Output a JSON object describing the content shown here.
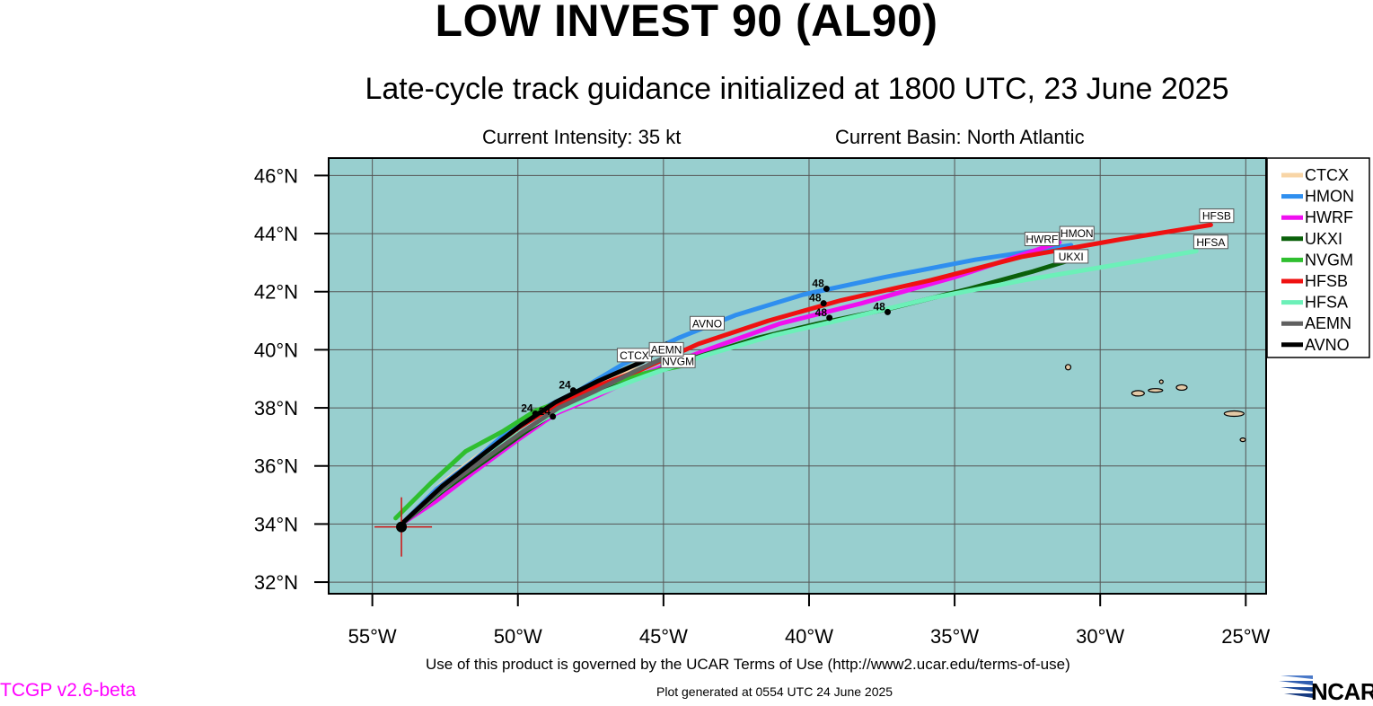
{
  "header": {
    "title": "LOW INVEST 90 (AL90)",
    "subtitle": "Late-cycle track guidance initialized at 1800 UTC, 23 June 2025",
    "intensity": "Current Intensity: 35 kt",
    "basin": "Current Basin: North Atlantic"
  },
  "footer": {
    "terms": "Use of this product is governed by the UCAR Terms of Use (http://www2.ucar.edu/terms-of-use)",
    "plot_generated": "Plot generated at 0554 UTC   24 June 2025",
    "version": "TCGP v2.6-beta",
    "logo": "NCAR"
  },
  "colors": {
    "ocean": "#98cfcf",
    "land": "#e3c9a6",
    "grid": "#555555",
    "storm_marker": "#d11111"
  },
  "chart_data": {
    "type": "map",
    "lon_range": [
      -56.5,
      -24.3
    ],
    "lat_range": [
      31.6,
      46.6
    ],
    "lon_ticks": [
      -55,
      -50,
      -45,
      -40,
      -35,
      -30,
      -25
    ],
    "lon_tick_labels": [
      "55°W",
      "50°W",
      "45°W",
      "40°W",
      "35°W",
      "30°W",
      "25°W"
    ],
    "lat_ticks": [
      32,
      34,
      36,
      38,
      40,
      42,
      44,
      46
    ],
    "lat_tick_labels": [
      "32°N",
      "34°N",
      "36°N",
      "38°N",
      "40°N",
      "42°N",
      "44°N",
      "46°N"
    ],
    "grid": true,
    "storm_position": {
      "lon": -54.0,
      "lat": 33.9
    },
    "legend_position": "right",
    "hour_labels": [
      "24",
      "48"
    ],
    "tracks": [
      {
        "name": "CTCX",
        "color": "#f8d5a6",
        "points": [
          [
            -54.0,
            34.0
          ],
          [
            -52.6,
            35.4
          ],
          [
            -51.3,
            36.4
          ],
          [
            -50.0,
            37.4
          ],
          [
            -48.8,
            38.1
          ],
          [
            -47.6,
            38.7
          ],
          [
            -46.4,
            39.2
          ],
          [
            -45.6,
            39.4
          ]
        ],
        "label": "CTCX",
        "label_at": [
          -46.0,
          39.8
        ]
      },
      {
        "name": "HMON",
        "color": "#2f8fef",
        "points": [
          [
            -54.0,
            34.0
          ],
          [
            -52.8,
            35.2
          ],
          [
            -51.5,
            36.2
          ],
          [
            -50.2,
            37.3
          ],
          [
            -48.9,
            38.1
          ],
          [
            -47.9,
            38.6
          ],
          [
            -46.4,
            39.5
          ],
          [
            -44.5,
            40.4
          ],
          [
            -42.5,
            41.2
          ],
          [
            -40.2,
            41.9
          ],
          [
            -37.4,
            42.5
          ],
          [
            -34.3,
            43.1
          ],
          [
            -31.0,
            43.6
          ]
        ],
        "label": "HMON",
        "label_at": [
          -30.8,
          44.0
        ]
      },
      {
        "name": "HWRF",
        "color": "#f00ff0",
        "points": [
          [
            -54.0,
            34.0
          ],
          [
            -52.8,
            34.8
          ],
          [
            -51.5,
            35.8
          ],
          [
            -50.0,
            36.9
          ],
          [
            -48.7,
            37.8
          ],
          [
            -47.3,
            38.4
          ],
          [
            -45.6,
            39.2
          ],
          [
            -43.5,
            40.0
          ],
          [
            -41.0,
            40.9
          ],
          [
            -38.2,
            41.6
          ],
          [
            -35.0,
            42.5
          ],
          [
            -32.3,
            43.4
          ],
          [
            -31.4,
            43.7
          ]
        ],
        "label": "HWRF",
        "label_at": [
          -32.0,
          43.8
        ]
      },
      {
        "name": "UKXI",
        "color": "#0a600a",
        "points": [
          [
            -54.0,
            34.0
          ],
          [
            -52.5,
            35.2
          ],
          [
            -51.1,
            36.2
          ],
          [
            -49.7,
            37.2
          ],
          [
            -48.5,
            38.0
          ],
          [
            -47.5,
            38.4
          ],
          [
            -46.0,
            39.0
          ],
          [
            -44.0,
            39.7
          ],
          [
            -41.8,
            40.4
          ],
          [
            -39.7,
            40.9
          ],
          [
            -37.3,
            41.4
          ],
          [
            -34.5,
            42.1
          ],
          [
            -32.3,
            42.7
          ],
          [
            -31.0,
            43.1
          ]
        ],
        "label": "UKXI",
        "label_at": [
          -31.0,
          43.2
        ]
      },
      {
        "name": "NVGM",
        "color": "#2fbf2f",
        "points": [
          [
            -54.2,
            34.2
          ],
          [
            -53.0,
            35.4
          ],
          [
            -51.8,
            36.5
          ],
          [
            -50.5,
            37.2
          ],
          [
            -49.4,
            37.9
          ],
          [
            -48.3,
            38.3
          ],
          [
            -47.0,
            38.8
          ],
          [
            -45.6,
            39.2
          ],
          [
            -44.1,
            39.5
          ]
        ],
        "label": "NVGM",
        "label_at": [
          -44.5,
          39.6
        ]
      },
      {
        "name": "HFSB",
        "color": "#ef1111",
        "points": [
          [
            -54.0,
            34.0
          ],
          [
            -52.6,
            35.3
          ],
          [
            -51.3,
            36.3
          ],
          [
            -50.0,
            37.3
          ],
          [
            -48.7,
            38.1
          ],
          [
            -47.4,
            38.7
          ],
          [
            -45.8,
            39.3
          ],
          [
            -43.8,
            40.2
          ],
          [
            -41.4,
            41.0
          ],
          [
            -38.9,
            41.7
          ],
          [
            -35.8,
            42.4
          ],
          [
            -32.7,
            43.2
          ],
          [
            -29.3,
            43.8
          ],
          [
            -26.2,
            44.3
          ]
        ],
        "label": "HFSB",
        "label_at": [
          -26.0,
          44.6
        ]
      },
      {
        "name": "HFSA",
        "color": "#6cf0b8",
        "points": [
          [
            -54.0,
            34.0
          ],
          [
            -52.7,
            35.1
          ],
          [
            -51.4,
            36.1
          ],
          [
            -50.0,
            37.1
          ],
          [
            -48.6,
            37.9
          ],
          [
            -47.2,
            38.5
          ],
          [
            -45.6,
            39.1
          ],
          [
            -43.6,
            39.8
          ],
          [
            -41.2,
            40.5
          ],
          [
            -38.6,
            41.1
          ],
          [
            -35.7,
            41.8
          ],
          [
            -32.6,
            42.4
          ],
          [
            -29.6,
            42.9
          ],
          [
            -26.7,
            43.4
          ]
        ],
        "label": "HFSA",
        "label_at": [
          -26.2,
          43.7
        ]
      },
      {
        "name": "AEMN",
        "color": "#606060",
        "points": [
          [
            -54.0,
            34.0
          ],
          [
            -52.6,
            35.2
          ],
          [
            -51.2,
            36.2
          ],
          [
            -49.8,
            37.2
          ],
          [
            -48.6,
            38.0
          ],
          [
            -47.3,
            38.6
          ],
          [
            -45.9,
            39.3
          ],
          [
            -44.8,
            39.8
          ]
        ],
        "label": "AEMN",
        "label_at": [
          -44.9,
          40.0
        ]
      },
      {
        "name": "AVNO",
        "color": "#000000",
        "points": [
          [
            -54.0,
            34.0
          ],
          [
            -52.6,
            35.3
          ],
          [
            -51.2,
            36.4
          ],
          [
            -49.9,
            37.4
          ],
          [
            -48.7,
            38.2
          ],
          [
            -47.3,
            38.9
          ],
          [
            -45.7,
            39.6
          ],
          [
            -44.9,
            40.2
          ]
        ],
        "label": "AVNO",
        "label_at": [
          -43.5,
          40.9
        ]
      }
    ],
    "hour_markers": [
      {
        "lon": -48.1,
        "lat": 38.6,
        "text": "24"
      },
      {
        "lon": -49.4,
        "lat": 37.8,
        "text": "24"
      },
      {
        "lon": -48.8,
        "lat": 37.7,
        "text": "24"
      },
      {
        "lon": -39.4,
        "lat": 42.1,
        "text": "48"
      },
      {
        "lon": -39.5,
        "lat": 41.6,
        "text": "48"
      },
      {
        "lon": -39.3,
        "lat": 41.1,
        "text": "48"
      },
      {
        "lon": -37.3,
        "lat": 41.3,
        "text": "48"
      }
    ]
  }
}
